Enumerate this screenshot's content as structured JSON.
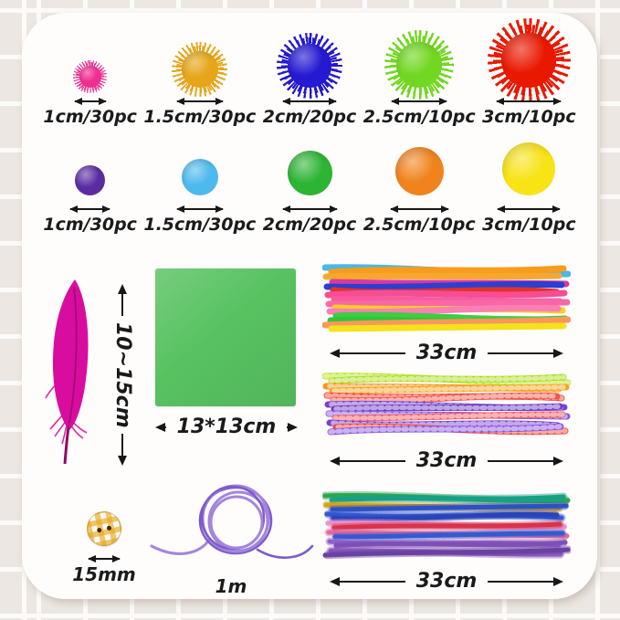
{
  "scene": {
    "tile_color": "#ece7e2",
    "grout_color": "#fcfbf9",
    "card_bg": "#fffdfc"
  },
  "pom_rows": [
    {
      "name": "glitter-pom-poms",
      "items": [
        {
          "label": "1cm/30pc",
          "color": "#ee2e91",
          "size": "24px"
        },
        {
          "label": "1.5cm/30pc",
          "color": "#e6a51a",
          "size": "40px"
        },
        {
          "label": "2cm/20pc",
          "color": "#2519d2",
          "size": "48px"
        },
        {
          "label": "2.5cm/10pc",
          "color": "#72d722",
          "size": "50px"
        },
        {
          "label": "3cm/10pc",
          "color": "#e91901",
          "size": "60px"
        }
      ]
    },
    {
      "name": "plain-pom-poms",
      "items": [
        {
          "label": "1cm/30pc",
          "color": "#5b2ca1",
          "size": "33px"
        },
        {
          "label": "1.5cm/30pc",
          "color": "#4db9ec",
          "size": "40px"
        },
        {
          "label": "2cm/20pc",
          "color": "#2db434",
          "size": "49px"
        },
        {
          "label": "2.5cm/10pc",
          "color": "#f0831d",
          "size": "53px"
        },
        {
          "label": "3cm/10pc",
          "color": "#f8e316",
          "size": "58px"
        }
      ]
    }
  ],
  "feather": {
    "dimension_label": "10~15cm",
    "color": "#d80d9f",
    "stem_color": "#8e0a62"
  },
  "paper": {
    "dimension_label": "13*13cm",
    "color": "#58c261"
  },
  "bundles": [
    {
      "dimension_label": "33cm",
      "texture": "smooth",
      "strands": [
        [
          "#4ab8e5",
          6,
          13
        ],
        [
          "#f79c1c",
          11,
          7
        ],
        [
          "#f8a72e",
          16,
          15
        ],
        [
          "#d73a9f",
          22,
          24
        ],
        [
          "#2b3fd3",
          27,
          25
        ],
        [
          "#e23326",
          31,
          33
        ],
        [
          "#f64d95",
          36,
          34
        ],
        [
          "#f85a9e",
          41,
          43
        ],
        [
          "#f868a6",
          46,
          44
        ],
        [
          "#f5d01e",
          50,
          53
        ],
        [
          "#fa7fb4",
          54,
          51
        ],
        [
          "#3ecd44",
          59,
          62
        ],
        [
          "#2fc63a",
          64,
          66
        ],
        [
          "#f9975c",
          69,
          63
        ],
        [
          "#f5e11c",
          73,
          70
        ]
      ]
    },
    {
      "dimension_label": "33cm",
      "texture": "striped",
      "strands": [
        [
          "#b7e41e",
          7,
          14
        ],
        [
          "#a9dd1b",
          12,
          8
        ],
        [
          "#f7951d",
          18,
          21
        ],
        [
          "#f8a21e",
          23,
          19
        ],
        [
          "#ef4136",
          28,
          31
        ],
        [
          "#f05545",
          33,
          29
        ],
        [
          "#7b40d1",
          38,
          41
        ],
        [
          "#6a38c5",
          43,
          40
        ],
        [
          "#8b53de",
          48,
          51
        ],
        [
          "#f2545b",
          53,
          49
        ],
        [
          "#7b40d1",
          58,
          61
        ],
        [
          "#ef4136",
          63,
          67
        ],
        [
          "#8b53de",
          68,
          62
        ]
      ]
    },
    {
      "dimension_label": "33cm",
      "texture": "tinsel",
      "strands": [
        [
          "#2aa850",
          6,
          11
        ],
        [
          "#17a086",
          11,
          7
        ],
        [
          "#d5a118",
          16,
          20
        ],
        [
          "#2f50c5",
          21,
          17
        ],
        [
          "#3659d1",
          26,
          30
        ],
        [
          "#2844b9",
          31,
          27
        ],
        [
          "#e991cd",
          36,
          40
        ],
        [
          "#d9344b",
          41,
          37
        ],
        [
          "#e16ba0",
          46,
          50
        ],
        [
          "#3659d1",
          51,
          47
        ],
        [
          "#9161c9",
          56,
          60
        ],
        [
          "#7f50b6",
          61,
          57
        ],
        [
          "#8b5bc0",
          66,
          70
        ],
        [
          "#6b40a1",
          71,
          65
        ]
      ]
    }
  ],
  "button": {
    "dimension_label": "15mm",
    "base_color": "#fffdf6",
    "check_color": "rgba(232,167,34,0.65)",
    "hole_color": "#42280f"
  },
  "cord": {
    "dimension_label": "1m",
    "color": "#a286dd",
    "dark_color": "#7e5bc9"
  }
}
